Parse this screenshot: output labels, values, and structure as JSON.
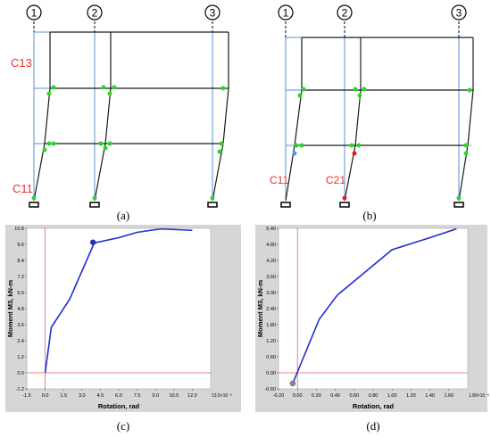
{
  "panels": {
    "a": {
      "caption": "(a)",
      "gridlines": [
        "1",
        "2",
        "3"
      ],
      "labels": {
        "c13": "C13",
        "c11": "C11"
      }
    },
    "b": {
      "caption": "(b)",
      "gridlines": [
        "1",
        "2",
        "3"
      ],
      "labels": {
        "c11": "C11",
        "c21": "C21"
      }
    },
    "c": {
      "caption": "(c)"
    },
    "d": {
      "caption": "(d)"
    }
  },
  "colors": {
    "frame": "#1a1a1a",
    "gridline": "#5b8fd6",
    "hinge_green": "#2fd02f",
    "hinge_red": "#e02020",
    "hinge_blue": "#3aa0ff",
    "label_red": "#e8322a",
    "chart_bg": "#d6d6d6",
    "curve": "#1f2fd0",
    "axis_red": "#e06060"
  },
  "chart_data": [
    {
      "type": "line",
      "panel": "c",
      "title": "",
      "xlabel": "Rotation, rad",
      "ylabel": "Moment M3, kN-m",
      "x_exponent_label": "13.5×10⁻³",
      "x_ticks": [
        "-1.5",
        "0.0",
        "1.5",
        "3.0",
        "4.5",
        "6.0",
        "7.5",
        "9.0",
        "10.5",
        "12.0"
      ],
      "y_ticks": [
        "-1.2",
        "0.0",
        "1.2",
        "2.4",
        "3.6",
        "4.8",
        "6.0",
        "7.2",
        "8.4",
        "9.6",
        "10.8"
      ],
      "xlim": [
        -1.5,
        13.5
      ],
      "ylim": [
        -1.2,
        10.8
      ],
      "grid": false,
      "series": [
        {
          "x": [
            0.0,
            0.5,
            2.0,
            4.0,
            6.0,
            7.5,
            9.0,
            9.5,
            12.0
          ],
          "y": [
            0.0,
            3.4,
            5.5,
            9.7,
            10.1,
            10.5,
            10.7,
            10.75,
            10.65
          ]
        }
      ],
      "marker": {
        "x": 3.9,
        "y": 9.75
      }
    },
    {
      "type": "line",
      "panel": "d",
      "title": "",
      "xlabel": "Rotation, rad",
      "ylabel": "Moment M3, kN-m",
      "x_exponent_label": "1.80×10⁻³",
      "x_ticks": [
        "-0.20",
        "0.00",
        "0.20",
        "0.40",
        "0.60",
        "0.80",
        "1.00",
        "1.20",
        "1.40",
        "1.60"
      ],
      "y_ticks": [
        "-0.60",
        "0.00",
        "0.60",
        "1.20",
        "1.80",
        "2.40",
        "3.00",
        "3.60",
        "4.20",
        "4.80",
        "5.40"
      ],
      "xlim": [
        -0.2,
        1.8
      ],
      "ylim": [
        -0.6,
        5.4
      ],
      "grid": false,
      "series": [
        {
          "x": [
            -0.05,
            0.23,
            0.42,
            1.0,
            1.4,
            1.68
          ],
          "y": [
            -0.4,
            2.0,
            2.9,
            4.6,
            5.05,
            5.38
          ]
        }
      ],
      "marker": {
        "x": -0.05,
        "y": -0.4
      }
    }
  ]
}
